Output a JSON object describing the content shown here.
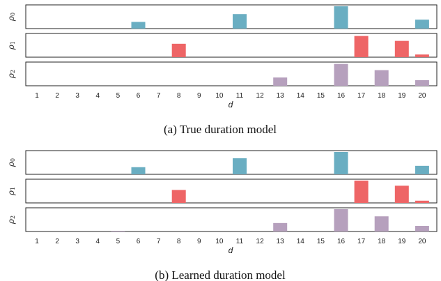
{
  "colors": {
    "rho0": "#6aaec2",
    "rho1": "#ee6566",
    "rho2": "#b6a0bd",
    "frame": "#222222"
  },
  "chart_data": [
    {
      "type": "bar",
      "caption": "(a) True duration model",
      "xlabel": "d",
      "categories": [
        1,
        2,
        3,
        4,
        5,
        6,
        7,
        8,
        9,
        10,
        11,
        12,
        13,
        14,
        15,
        16,
        17,
        18,
        19,
        20
      ],
      "series": [
        {
          "name": "ρ0",
          "values": [
            0,
            0,
            0,
            0,
            0,
            0.3,
            0,
            0,
            0,
            0,
            0.65,
            0,
            0,
            0,
            0,
            1.0,
            0,
            0,
            0,
            0.4
          ]
        },
        {
          "name": "ρ1",
          "values": [
            0,
            0,
            0,
            0,
            0,
            0,
            0,
            0.6,
            0,
            0,
            0,
            0,
            0,
            0,
            0,
            0,
            0.95,
            0,
            0.73,
            0.12
          ]
        },
        {
          "name": "ρ2",
          "values": [
            0,
            0,
            0,
            0,
            0,
            0,
            0,
            0,
            0,
            0,
            0,
            0,
            0.37,
            0,
            0,
            0.98,
            0,
            0.7,
            0,
            0.25
          ]
        }
      ],
      "ylim": [
        0,
        1
      ],
      "grid": false
    },
    {
      "type": "bar",
      "caption": "(b) Learned duration model",
      "xlabel": "d",
      "categories": [
        1,
        2,
        3,
        4,
        5,
        6,
        7,
        8,
        9,
        10,
        11,
        12,
        13,
        14,
        15,
        16,
        17,
        18,
        19,
        20
      ],
      "series": [
        {
          "name": "ρ0",
          "values": [
            0,
            0,
            0,
            0,
            0,
            0.32,
            0,
            0,
            0,
            0,
            0.72,
            0,
            0,
            0,
            0,
            1.0,
            0,
            0,
            0,
            0.38
          ]
        },
        {
          "name": "ρ1",
          "values": [
            0,
            0,
            0,
            0,
            0,
            0,
            0,
            0.58,
            0,
            0,
            0,
            0,
            0,
            0,
            0,
            0,
            1.0,
            0,
            0.77,
            0.1
          ]
        },
        {
          "name": "ρ2",
          "values": [
            0,
            0,
            0,
            0,
            0.03,
            0,
            0,
            0,
            0,
            0,
            0,
            0,
            0.38,
            0,
            0,
            1.0,
            0,
            0.68,
            0,
            0.25
          ]
        }
      ],
      "ylim": [
        0,
        1
      ],
      "grid": false
    }
  ]
}
